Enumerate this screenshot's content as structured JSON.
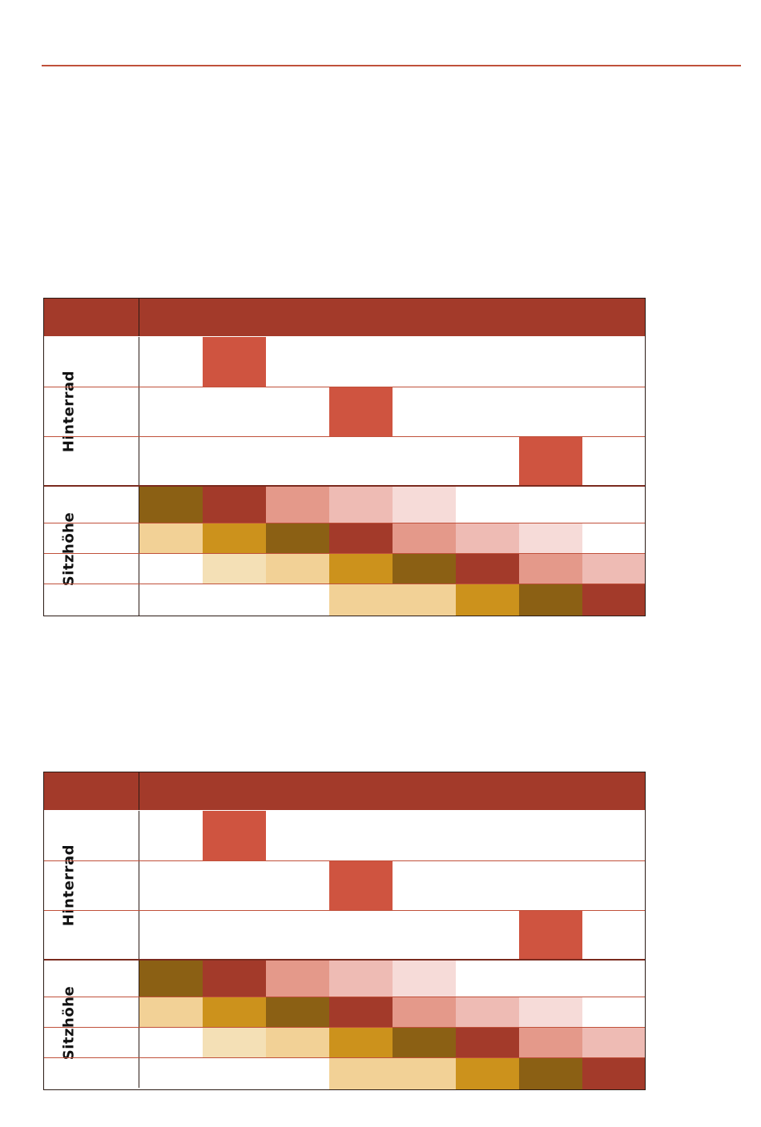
{
  "labels": {
    "rear_wheel": "Hinterrad",
    "seat_height": "Sitzhöhe"
  },
  "colors": {
    "header": "#a33a2a",
    "rule": "#c0503a",
    "wheel_mark": "#cf5440",
    "palette": {
      "W": "#ffffff",
      "O": "#8b6014",
      "R": "#a33a2a",
      "S": "#e4998a",
      "P": "#eebbb4",
      "L": "#f6dbd8",
      "T": "#f2d196",
      "G": "#cc921c",
      "C": "#f4e0b6"
    }
  },
  "tables": [
    {
      "id": "table-1",
      "wheel_marks": [
        1,
        3,
        6
      ],
      "seat_rows": [
        [
          "O",
          "R",
          "S",
          "P",
          "L",
          "W",
          "W",
          "W"
        ],
        [
          "T",
          "G",
          "O",
          "R",
          "S",
          "P",
          "L",
          "W"
        ],
        [
          "W",
          "C",
          "T",
          "G",
          "O",
          "R",
          "S",
          "P"
        ],
        [
          "W",
          "W",
          "W",
          "T",
          "T",
          "G",
          "O",
          "R"
        ]
      ]
    },
    {
      "id": "table-2",
      "wheel_marks": [
        1,
        3,
        6
      ],
      "seat_rows": [
        [
          "O",
          "R",
          "S",
          "P",
          "L",
          "W",
          "W",
          "W"
        ],
        [
          "T",
          "G",
          "O",
          "R",
          "S",
          "P",
          "L",
          "W"
        ],
        [
          "W",
          "C",
          "T",
          "G",
          "O",
          "R",
          "S",
          "P"
        ],
        [
          "W",
          "W",
          "W",
          "T",
          "T",
          "G",
          "O",
          "R"
        ]
      ]
    }
  ]
}
